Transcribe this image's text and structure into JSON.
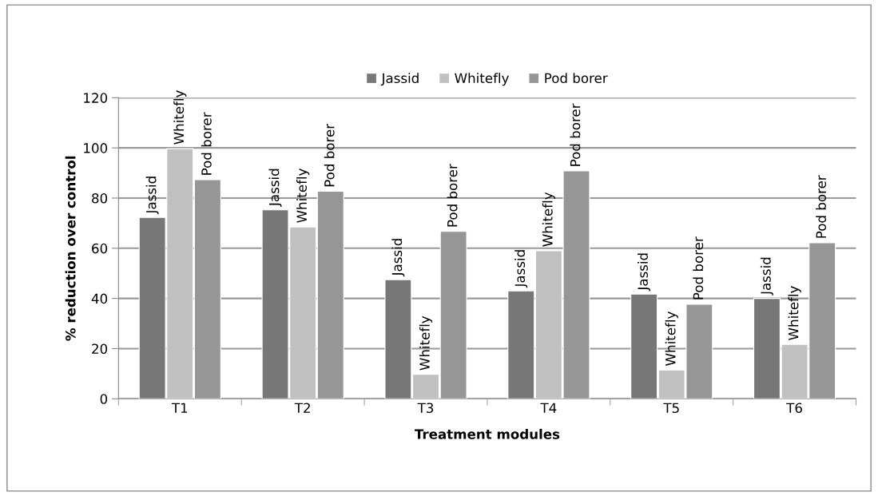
{
  "chart_data": {
    "type": "bar",
    "xlabel": "Treatment modules",
    "ylabel": "% reduction over control",
    "categories": [
      "T1",
      "T2",
      "T3",
      "T4",
      "T5",
      "T6"
    ],
    "series": [
      {
        "name": "Jassid",
        "color": "#777777",
        "values": [
          72.3,
          75.3,
          47.5,
          43,
          41.7,
          40
        ]
      },
      {
        "name": "Whitefly",
        "color": "#c0c0c0",
        "values": [
          99.7,
          68.5,
          9.7,
          59,
          11.5,
          21.7
        ]
      },
      {
        "name": "Pod borer",
        "color": "#969696",
        "values": [
          87.3,
          82.7,
          66.7,
          90.8,
          37.7,
          62.2
        ]
      }
    ],
    "ylim": [
      0,
      120
    ],
    "yticks": [
      0,
      20,
      40,
      60,
      80,
      100,
      120
    ],
    "grid": "y",
    "legend": "top"
  }
}
